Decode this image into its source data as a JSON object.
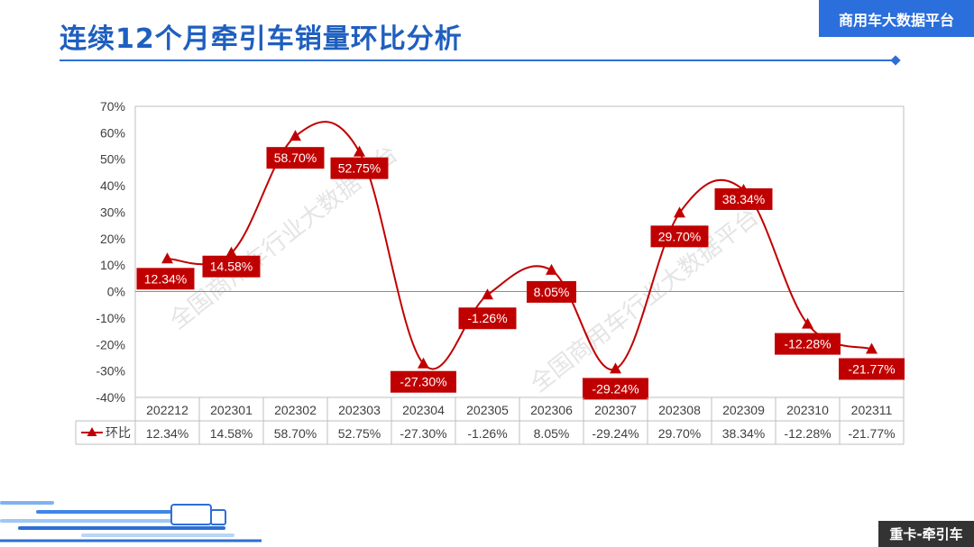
{
  "header": {
    "title": "连续12个月牵引车销量环比分析",
    "brand": "商用车大数据平台"
  },
  "footer": {
    "tag": "重卡-牵引车"
  },
  "watermark": "全国商用车行业大数据平台",
  "colors": {
    "series": "#c00000",
    "title": "#1f5fbf",
    "brand_bg": "#2a6fdc",
    "grid": "#d9d9d9"
  },
  "chart_data": {
    "type": "line",
    "title": "",
    "xlabel": "",
    "ylabel": "",
    "categories": [
      "202212",
      "202301",
      "202302",
      "202303",
      "202304",
      "202305",
      "202306",
      "202307",
      "202308",
      "202309",
      "202310",
      "202311"
    ],
    "series": [
      {
        "name": "环比",
        "values": [
          12.34,
          14.58,
          58.7,
          52.75,
          -27.3,
          -1.26,
          8.05,
          -29.24,
          29.7,
          38.34,
          -12.28,
          -21.77
        ],
        "labels": [
          "12.34%",
          "14.58%",
          "58.70%",
          "52.75%",
          "-27.30%",
          "-1.26%",
          "8.05%",
          "-29.24%",
          "29.70%",
          "38.34%",
          "-12.28%",
          "-21.77%"
        ]
      }
    ],
    "ylim": [
      -40,
      70
    ],
    "yticks": [
      "70%",
      "60%",
      "50%",
      "40%",
      "30%",
      "20%",
      "10%",
      "0%",
      "-10%",
      "-20%",
      "-30%",
      "-40%"
    ],
    "grid": false,
    "marker": "triangle",
    "smooth": true,
    "data_table": true
  }
}
